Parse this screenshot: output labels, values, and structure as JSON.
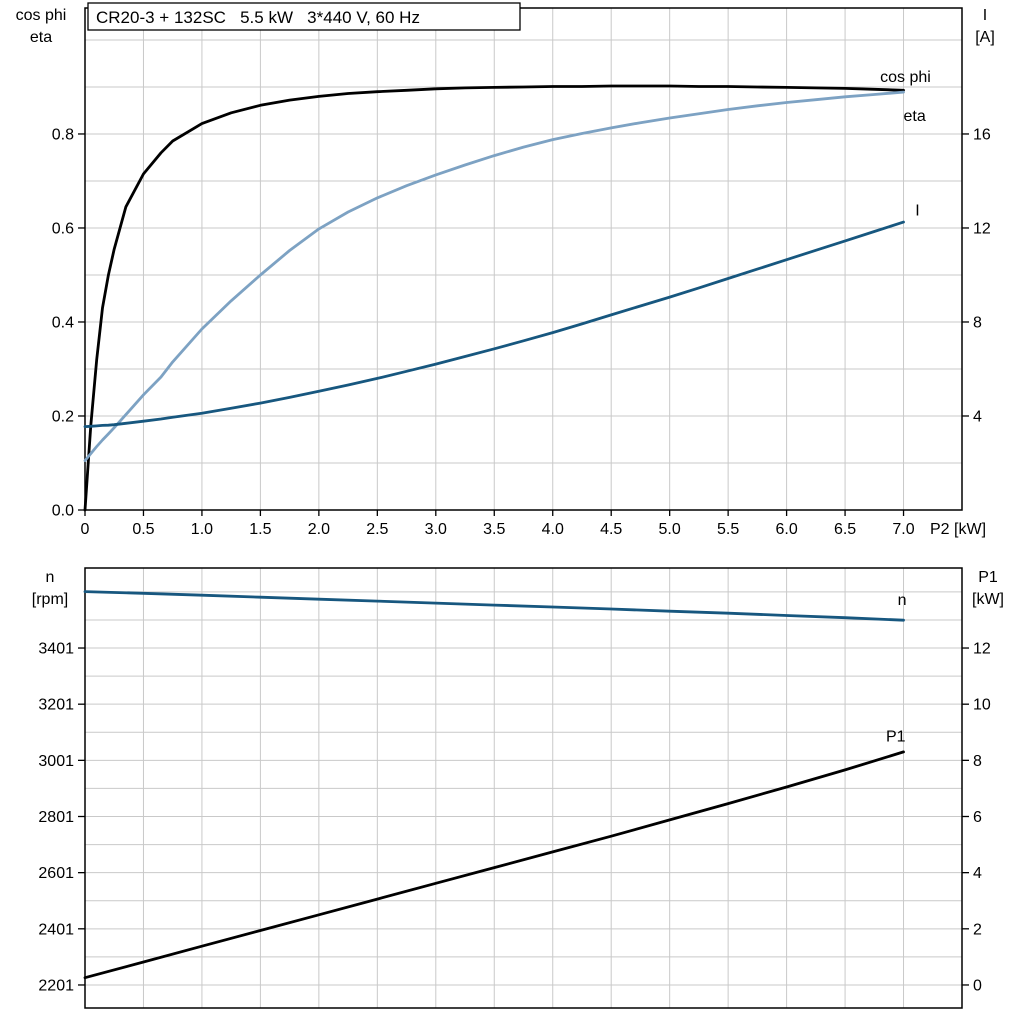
{
  "page": {
    "background": "#ffffff"
  },
  "colors": {
    "black": "#000000",
    "dark_blue": "#17577f",
    "light_blue": "#7da2c3",
    "grid": "#c9c9c9",
    "border": "#000000"
  },
  "chart_data": [
    {
      "type": "line",
      "title": "CR20-3 + 132SC   5.5 kW   3*440 V, 60 Hz",
      "xlim": [
        0,
        7.5
      ],
      "x_axis_end_label": "P2 [kW]",
      "x_ticks": {
        "values": [
          0,
          0.5,
          1,
          1.5,
          2,
          2.5,
          3,
          3.5,
          4,
          4.5,
          5,
          5.5,
          6,
          6.5,
          7
        ],
        "labels": [
          "0",
          "0.5",
          "1.0",
          "1.5",
          "2.0",
          "2.5",
          "3.0",
          "3.5",
          "4.0",
          "4.5",
          "5.0",
          "5.5",
          "6.0",
          "6.5",
          "7.0"
        ]
      },
      "left_axis": {
        "title_lines": [
          "cos phi",
          "eta"
        ],
        "lim": [
          0,
          1.068
        ],
        "ticks": {
          "values": [
            0,
            0.2,
            0.4,
            0.6,
            0.8
          ],
          "labels": [
            "0.0",
            "0.2",
            "0.4",
            "0.6",
            "0.8"
          ]
        }
      },
      "right_axis": {
        "title_lines": [
          "I",
          "[A]"
        ],
        "lim": [
          0,
          21.36
        ],
        "ticks": {
          "values": [
            4,
            8,
            12,
            16
          ],
          "labels": [
            "4",
            "8",
            "12",
            "16"
          ]
        }
      },
      "grid": {
        "x_values": [
          0.5,
          1,
          1.5,
          2,
          2.5,
          3,
          3.5,
          4,
          4.5,
          5,
          5.5,
          6,
          6.5,
          7
        ],
        "y_values": [
          0.1,
          0.2,
          0.3,
          0.4,
          0.5,
          0.6,
          0.7,
          0.8,
          0.9,
          1.0
        ]
      },
      "x": [
        0,
        0.05,
        0.1,
        0.15,
        0.2,
        0.25,
        0.35,
        0.5,
        0.65,
        0.75,
        1,
        1.25,
        1.5,
        1.75,
        2,
        2.25,
        2.5,
        2.75,
        3,
        3.25,
        3.5,
        3.75,
        4,
        4.25,
        4.5,
        4.75,
        5,
        5.25,
        5.5,
        5.75,
        6,
        6.25,
        6.5,
        6.75,
        7
      ],
      "series": [
        {
          "name": "eta",
          "axis": "left",
          "color_key": "black",
          "values": [
            0,
            0.18,
            0.32,
            0.43,
            0.5,
            0.555,
            0.645,
            0.715,
            0.76,
            0.785,
            0.822,
            0.845,
            0.861,
            0.872,
            0.88,
            0.886,
            0.89,
            0.893,
            0.896,
            0.898,
            0.899,
            0.9,
            0.901,
            0.901,
            0.902,
            0.902,
            0.902,
            0.901,
            0.901,
            0.9,
            0.899,
            0.898,
            0.897,
            0.895,
            0.893
          ],
          "label": {
            "text": "eta",
            "x": 7.0,
            "y": 0.838,
            "anchor": "start"
          }
        },
        {
          "name": "cos phi",
          "axis": "left",
          "color_key": "light_blue",
          "values": [
            0.105,
            0.12,
            0.135,
            0.149,
            0.162,
            0.175,
            0.203,
            0.245,
            0.283,
            0.315,
            0.385,
            0.445,
            0.5,
            0.552,
            0.598,
            0.634,
            0.664,
            0.69,
            0.713,
            0.734,
            0.754,
            0.772,
            0.788,
            0.801,
            0.813,
            0.824,
            0.834,
            0.843,
            0.852,
            0.86,
            0.867,
            0.873,
            0.879,
            0.884,
            0.889
          ],
          "label": {
            "text": "cos phi",
            "x": 6.8,
            "y": 0.921,
            "anchor": "start"
          }
        },
        {
          "name": "I",
          "axis": "right",
          "color_key": "dark_blue",
          "values": [
            3.55,
            3.56,
            3.58,
            3.6,
            3.61,
            3.63,
            3.69,
            3.78,
            3.87,
            3.95,
            4.12,
            4.33,
            4.55,
            4.79,
            5.05,
            5.32,
            5.6,
            5.9,
            6.21,
            6.53,
            6.86,
            7.2,
            7.55,
            7.92,
            8.3,
            8.68,
            9.06,
            9.45,
            9.85,
            10.25,
            10.65,
            11.05,
            11.45,
            11.85,
            12.25
          ],
          "label": {
            "text": "I",
            "x": 7.1,
            "y": 12.75,
            "anchor": "start"
          }
        }
      ]
    },
    {
      "type": "line",
      "title": null,
      "xlim": [
        0,
        7.5
      ],
      "x_axis_end_label": null,
      "x_ticks": {
        "values": [],
        "labels": []
      },
      "left_axis": {
        "title_lines": [
          "n",
          "[rpm]"
        ],
        "lim": [
          2119,
          3686
        ],
        "ticks": {
          "values": [
            2201,
            2401,
            2601,
            2801,
            3001,
            3201,
            3401
          ],
          "labels": [
            "2201",
            "2401",
            "2601",
            "2801",
            "3001",
            "3201",
            "3401"
          ]
        }
      },
      "right_axis": {
        "title_lines": [
          "P1",
          "[kW]"
        ],
        "lim": [
          -0.82,
          14.85
        ],
        "ticks": {
          "values": [
            0,
            2,
            4,
            6,
            8,
            10,
            12
          ],
          "labels": [
            "0",
            "2",
            "4",
            "6",
            "8",
            "10",
            "12"
          ]
        }
      },
      "grid": {
        "x_values": [
          0.5,
          1,
          1.5,
          2,
          2.5,
          3,
          3.5,
          4,
          4.5,
          5,
          5.5,
          6,
          6.5,
          7
        ],
        "y_values": [
          2201,
          2301,
          2401,
          2501,
          2601,
          2701,
          2801,
          2901,
          3001,
          3101,
          3201,
          3301,
          3401,
          3501,
          3601
        ]
      },
      "x": [
        0,
        0.5,
        1,
        1.5,
        2,
        2.5,
        3,
        3.5,
        4,
        4.5,
        5,
        5.5,
        6,
        6.5,
        7
      ],
      "series": [
        {
          "name": "n",
          "axis": "left",
          "color_key": "dark_blue",
          "values": [
            3602,
            3596,
            3589,
            3582,
            3575,
            3568,
            3561,
            3554,
            3547,
            3540,
            3532,
            3525,
            3517,
            3509,
            3500
          ],
          "label": {
            "text": "n",
            "x": 6.95,
            "y": 3572,
            "anchor": "start"
          }
        },
        {
          "name": "P1",
          "axis": "right",
          "color_key": "black",
          "values": [
            0.26,
            0.82,
            1.38,
            1.94,
            2.5,
            3.06,
            3.62,
            4.18,
            4.74,
            5.3,
            5.88,
            6.46,
            7.05,
            7.66,
            8.3
          ],
          "label": {
            "text": "P1",
            "x": 6.85,
            "y": 8.85,
            "anchor": "start"
          }
        }
      ]
    }
  ]
}
